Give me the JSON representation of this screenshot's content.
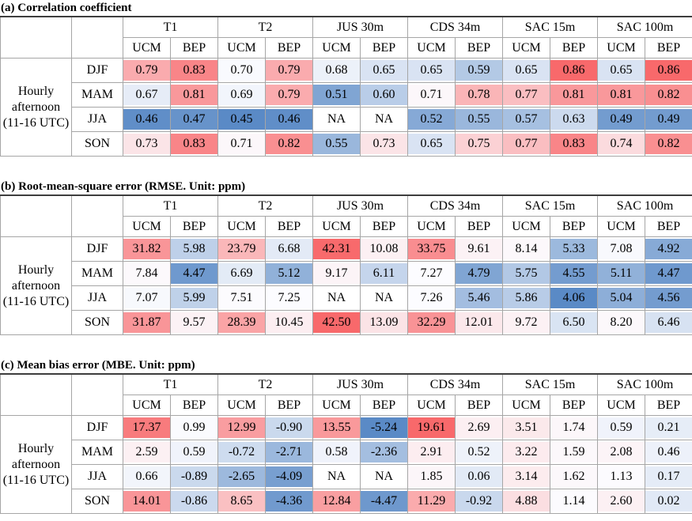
{
  "colors": {
    "scale_low_blue": "#5A8AC6",
    "scale_mid_white": "#FCFCFF",
    "scale_high_red": "#F8696B",
    "grid_line": "#A6A6A6",
    "outer_border": "#8F8F8F",
    "top_rule": "#3D3D3D",
    "na_background": "#FFFFFF",
    "text": "#000000"
  },
  "chart_data": [
    {
      "type": "heatmap-table",
      "title": "(a) Correlation coefficient",
      "group_headers": [
        "T1",
        "T2",
        "JUS 30m",
        "CDS 34m",
        "SAC 15m",
        "SAC 100m"
      ],
      "sub_headers": [
        "UCM",
        "BEP"
      ],
      "row_header_label": "Hourly afternoon (11-16 UTC)",
      "seasons": [
        "DJF",
        "MAM",
        "JJA",
        "SON"
      ],
      "rows": [
        [
          "0.79",
          "0.83",
          "0.70",
          "0.79",
          "0.68",
          "0.65",
          "0.65",
          "0.59",
          "0.65",
          "0.86",
          "0.65",
          "0.86"
        ],
        [
          "0.67",
          "0.81",
          "0.69",
          "0.79",
          "0.51",
          "0.60",
          "0.71",
          "0.78",
          "0.77",
          "0.81",
          "0.81",
          "0.82"
        ],
        [
          "0.46",
          "0.47",
          "0.45",
          "0.46",
          "NA",
          "NA",
          "0.52",
          "0.55",
          "0.57",
          "0.63",
          "0.49",
          "0.49"
        ],
        [
          "0.73",
          "0.83",
          "0.71",
          "0.82",
          "0.55",
          "0.73",
          "0.65",
          "0.75",
          "0.77",
          "0.83",
          "0.74",
          "0.82"
        ]
      ],
      "color_scale": {
        "low": "#5A8AC6",
        "mid": "#FCFCFF",
        "high": "#F8696B",
        "midpoint": "50th percentile"
      }
    },
    {
      "type": "heatmap-table",
      "title": "(b) Root-mean-square error (RMSE. Unit: ppm)",
      "group_headers": [
        "T1",
        "T2",
        "JUS 30m",
        "CDS 34m",
        "SAC 15m",
        "SAC 100m"
      ],
      "sub_headers": [
        "UCM",
        "BEP"
      ],
      "row_header_label": "Hourly afternoon (11-16 UTC)",
      "seasons": [
        "DJF",
        "MAM",
        "JJA",
        "SON"
      ],
      "rows": [
        [
          "31.82",
          "5.98",
          "23.79",
          "6.68",
          "42.31",
          "10.08",
          "33.75",
          "9.61",
          "8.14",
          "5.33",
          "7.08",
          "4.92"
        ],
        [
          "7.84",
          "4.47",
          "6.69",
          "5.12",
          "9.17",
          "6.11",
          "7.27",
          "4.79",
          "5.75",
          "4.55",
          "5.11",
          "4.47"
        ],
        [
          "7.07",
          "5.99",
          "7.51",
          "7.25",
          "NA",
          "NA",
          "7.26",
          "5.46",
          "5.86",
          "4.06",
          "5.04",
          "4.56"
        ],
        [
          "31.87",
          "9.57",
          "28.39",
          "10.45",
          "42.50",
          "13.09",
          "32.29",
          "12.01",
          "9.72",
          "6.50",
          "8.20",
          "6.46"
        ]
      ],
      "color_scale": {
        "low": "#5A8AC6",
        "mid": "#FCFCFF",
        "high": "#F8696B",
        "midpoint": "50th percentile"
      }
    },
    {
      "type": "heatmap-table",
      "title": "(c) Mean bias error (MBE. Unit: ppm)",
      "group_headers": [
        "T1",
        "T2",
        "JUS 30m",
        "CDS 34m",
        "SAC 15m",
        "SAC 100m"
      ],
      "sub_headers": [
        "UCM",
        "BEP"
      ],
      "row_header_label": "Hourly afternoon (11-16 UTC)",
      "seasons": [
        "DJF",
        "MAM",
        "JJA",
        "SON"
      ],
      "rows": [
        [
          "17.37",
          "0.99",
          "12.99",
          "-0.90",
          "13.55",
          "-5.24",
          "19.61",
          "2.69",
          "3.51",
          "1.74",
          "0.59",
          "0.21"
        ],
        [
          "2.59",
          "0.59",
          "-0.72",
          "-2.71",
          "0.58",
          "-2.36",
          "2.91",
          "0.52",
          "3.22",
          "1.59",
          "2.08",
          "0.46"
        ],
        [
          "0.66",
          "-0.89",
          "-2.65",
          "-4.09",
          "NA",
          "NA",
          "1.85",
          "0.06",
          "3.14",
          "1.62",
          "1.13",
          "0.17"
        ],
        [
          "14.01",
          "-0.86",
          "8.65",
          "-4.36",
          "12.84",
          "-4.47",
          "11.29",
          "-0.92",
          "4.88",
          "1.14",
          "2.60",
          "0.02"
        ]
      ],
      "color_scale": {
        "low": "#5A8AC6",
        "mid": "#FCFCFF",
        "high": "#F8696B",
        "midpoint": "50th percentile"
      }
    }
  ]
}
